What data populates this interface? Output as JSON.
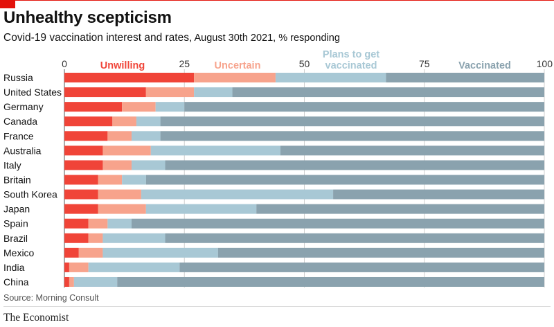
{
  "header": {
    "title": "Unhealthy scepticism",
    "subtitle_main": "Covid-19 vaccination interest and rates,",
    "subtitle_rest": " August 30th 2021, % responding"
  },
  "footer": {
    "source": "Source: Morning Consult",
    "logo": "The Economist"
  },
  "colors": {
    "unwilling": "#f04438",
    "uncertain": "#f7a38c",
    "plans": "#a8c8d5",
    "vaccinated": "#8aa2ae",
    "brand_red": "#e3120b",
    "gridline": "#cfcfcf"
  },
  "chart_data": {
    "type": "bar",
    "orientation": "horizontal",
    "stacked": true,
    "xlim": [
      0,
      100
    ],
    "x_ticks": [
      "0",
      "25",
      "50",
      "75",
      "100"
    ],
    "grid": true,
    "legend_placement": "top, inline labels",
    "categories": [
      "Russia",
      "United States",
      "Germany",
      "Canada",
      "France",
      "Australia",
      "Italy",
      "Britain",
      "South Korea",
      "Japan",
      "Spain",
      "Brazil",
      "Mexico",
      "India",
      "China"
    ],
    "series": [
      {
        "name": "Unwilling",
        "color": "#f04438",
        "values": [
          27,
          17,
          12,
          10,
          9,
          8,
          8,
          7,
          7,
          7,
          5,
          5,
          3,
          1,
          1
        ]
      },
      {
        "name": "Uncertain",
        "color": "#f7a38c",
        "values": [
          17,
          10,
          7,
          5,
          5,
          10,
          6,
          5,
          9,
          10,
          4,
          3,
          5,
          4,
          1
        ]
      },
      {
        "name": "Plans to get vaccinated",
        "color": "#a8c8d5",
        "values": [
          23,
          8,
          6,
          5,
          6,
          27,
          7,
          5,
          40,
          23,
          5,
          13,
          24,
          19,
          9
        ]
      },
      {
        "name": "Vaccinated",
        "color": "#8aa2ae",
        "values": [
          33,
          65,
          75,
          80,
          80,
          55,
          79,
          83,
          44,
          60,
          86,
          79,
          68,
          76,
          89
        ]
      }
    ],
    "legend_lines": [
      [
        "Unwilling"
      ],
      [
        "Uncertain"
      ],
      [
        "Plans to get",
        "vaccinated"
      ],
      [
        "Vaccinated"
      ]
    ]
  }
}
